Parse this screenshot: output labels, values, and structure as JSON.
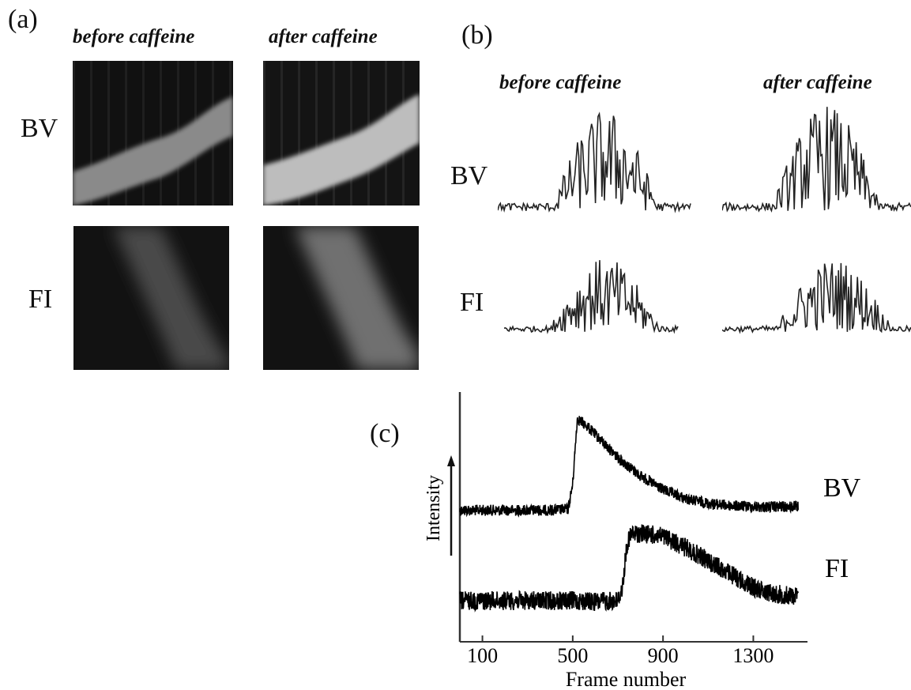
{
  "panel_a": {
    "letter": "(a)",
    "col_before": "before caffeine",
    "col_after": "after caffeine",
    "row_bv": "BV",
    "row_fi": "FI"
  },
  "panel_b": {
    "letter": "(b)",
    "col_before": "before caffeine",
    "col_after": "after caffeine",
    "row_bv": "BV",
    "row_fi": "FI"
  },
  "panel_c": {
    "letter": "(c)",
    "ylabel": "Intensity",
    "xlabel": "Frame number",
    "xticks": [
      "100",
      "500",
      "900",
      "1300"
    ],
    "label_bv": "BV",
    "label_fi": "FI"
  },
  "chart_data": {
    "type": "line",
    "title": "",
    "xlabel": "Frame number",
    "ylabel": "Intensity",
    "x_ticks": [
      100,
      500,
      900,
      1300
    ],
    "xlim": [
      0,
      1540
    ],
    "y_numeric_scale": false,
    "series": [
      {
        "name": "BV",
        "x": [
          0,
          100,
          200,
          300,
          400,
          480,
          500,
          520,
          560,
          600,
          650,
          700,
          800,
          900,
          1000,
          1100,
          1200,
          1300,
          1400,
          1500
        ],
        "y": [
          0.12,
          0.12,
          0.12,
          0.12,
          0.12,
          0.13,
          0.35,
          0.92,
          0.86,
          0.78,
          0.68,
          0.58,
          0.42,
          0.3,
          0.22,
          0.18,
          0.16,
          0.15,
          0.15,
          0.15
        ]
      },
      {
        "name": "FI",
        "x": [
          0,
          100,
          200,
          300,
          400,
          500,
          600,
          700,
          720,
          740,
          760,
          800,
          900,
          1000,
          1100,
          1200,
          1300,
          1400,
          1500
        ],
        "y": [
          0.2,
          0.2,
          0.2,
          0.2,
          0.2,
          0.2,
          0.19,
          0.2,
          0.32,
          0.7,
          0.8,
          0.81,
          0.78,
          0.68,
          0.56,
          0.44,
          0.32,
          0.26,
          0.24
        ]
      }
    ]
  }
}
